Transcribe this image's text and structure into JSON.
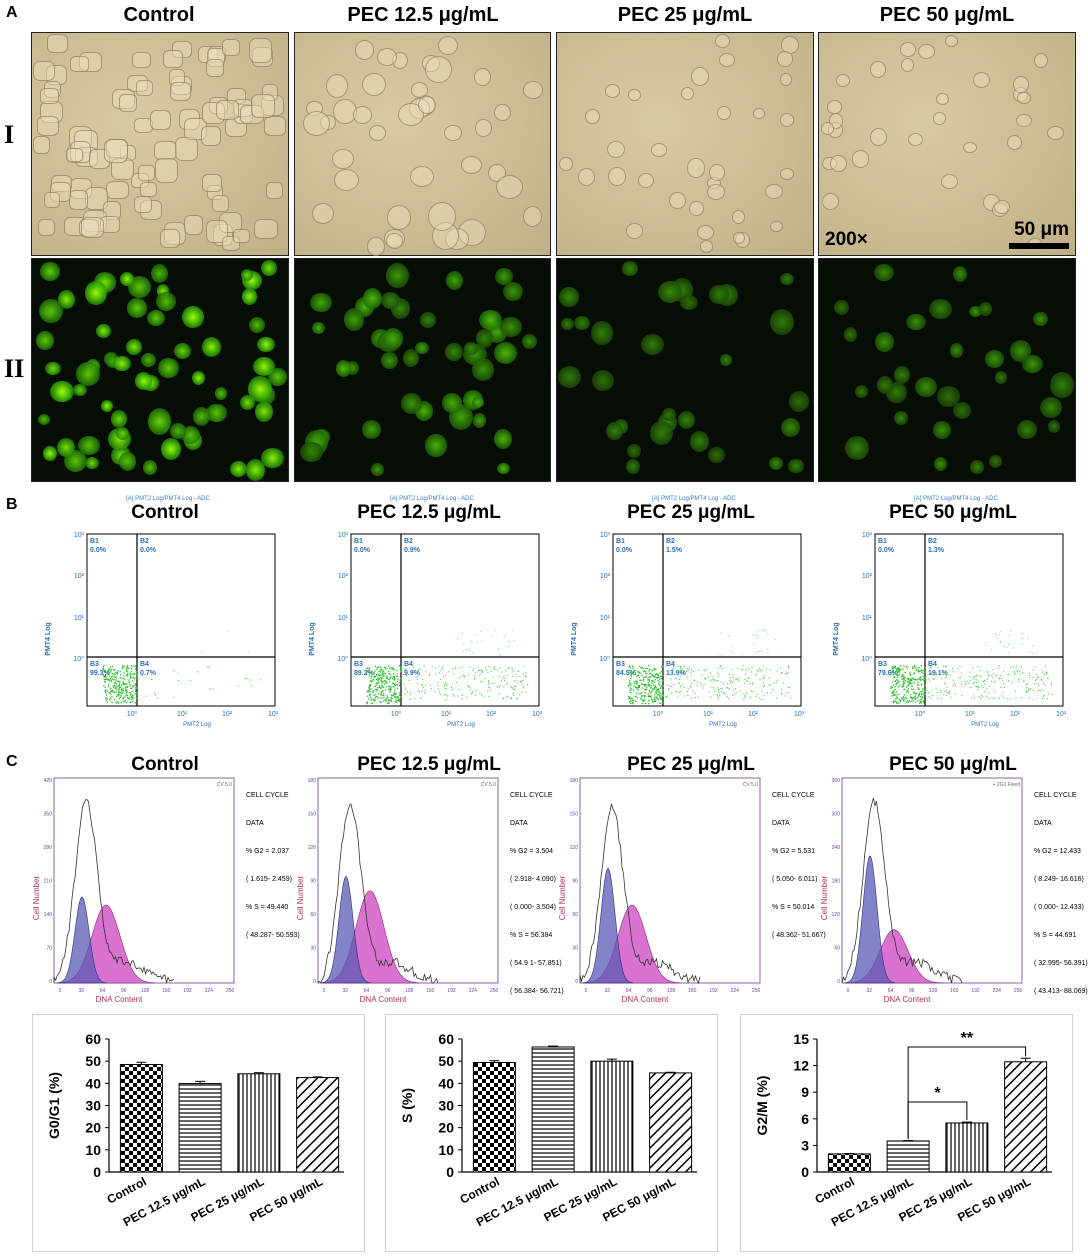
{
  "panel_letters": {
    "a": "A",
    "b": "B",
    "c": "C"
  },
  "row_labels": {
    "row1": "I",
    "row2": "II"
  },
  "column_titles": [
    "Control",
    "PEC 12.5 μg/mL",
    "PEC 25 μg/mL",
    "PEC 50 μg/mL"
  ],
  "micrograph": {
    "magnification": "200×",
    "scale_bar": "50 μm"
  },
  "flow": {
    "header": "[A] PMT2 Log/PMT4 Log - ADC",
    "y_label": "PMT4 Log",
    "x_label": "PMT2 Log",
    "y_ticks": [
      "10³",
      "10²",
      "10¹",
      "10⁰"
    ],
    "x_ticks": [
      "10⁰",
      "10¹",
      "10²",
      "10³"
    ],
    "quadrant_names": [
      "B1",
      "B2",
      "B3",
      "B4"
    ],
    "plots": [
      {
        "b1": "0.0%",
        "b2": "0.0%",
        "b3": "99.3%",
        "b4": "0.7%"
      },
      {
        "b1": "0.0%",
        "b2": "0.9%",
        "b3": "89.2%",
        "b4": "9.9%"
      },
      {
        "b1": "0.0%",
        "b2": "1.5%",
        "b3": "84.5%",
        "b4": "13.9%"
      },
      {
        "b1": "0.0%",
        "b2": "1.3%",
        "b3": "79.6%",
        "b4": "19.1%"
      }
    ]
  },
  "cell_cycle": {
    "y_label": "Cell Number",
    "x_label": "DNA Content",
    "x_ticks": [
      "0",
      "32",
      "64",
      "96",
      "128",
      "160",
      "192",
      "224",
      "256"
    ],
    "plots": [
      {
        "ymax": "420",
        "yticks": [
          "420",
          "350",
          "280",
          "210",
          "140",
          "70",
          "0"
        ],
        "corner": "CV 5.0",
        "side": [
          "CELL CYCLE",
          "DATA",
          "% G2 = 2.037",
          "( 1.615- 2.459)",
          "% S = 49.440",
          "( 48.287- 50.593)"
        ]
      },
      {
        "ymax": "180",
        "yticks": [
          "180",
          "150",
          "120",
          "90",
          "60",
          "30",
          "0"
        ],
        "corner": "CV 5.0",
        "side": [
          "CELL CYCLE",
          "DATA",
          "% G2 = 3.504",
          "( 2.918- 4.090)",
          "( 0.000- 3.504)",
          "% S = 56.384",
          "( 54.9 1- 57.851)",
          "( 56.384- 56.721)"
        ]
      },
      {
        "ymax": "180",
        "yticks": [
          "180",
          "150",
          "120",
          "90",
          "60",
          "30",
          "0"
        ],
        "corner": "CV 5.0",
        "side": [
          "CELL CYCLE",
          "DATA",
          "% G2 = 5.531",
          "( 5.050- 6.011)",
          "% S = 50.014",
          "( 48.362- 51.667)"
        ]
      },
      {
        "ymax": "360",
        "yticks": [
          "360",
          "300",
          "240",
          "180",
          "120",
          "60",
          "0"
        ],
        "corner": "+ 2G1 Fixed",
        "side": [
          "CELL CYCLE",
          "DATA",
          "% G2 = 12.433",
          "( 8.249- 16.616)",
          "( 0.000- 12.433)",
          "% S = 44.691",
          "( 32.995- 56.391)",
          "( 43.413- 88.069)"
        ]
      }
    ]
  },
  "chart_data": [
    {
      "type": "bar",
      "categories": [
        "Control",
        "PEC 12.5 μg/mL",
        "PEC 25 μg/mL",
        "PEC 50 μg/mL"
      ],
      "values": [
        48.5,
        39.9,
        44.3,
        42.6
      ],
      "errors": [
        1.0,
        1.0,
        0.5,
        0.3
      ],
      "ylabel": "G0/G1 (%)",
      "ylim": [
        0,
        60
      ],
      "yticks": [
        "0",
        "10",
        "20",
        "30",
        "40",
        "50",
        "60"
      ],
      "patterns": [
        "checker",
        "horizontal",
        "vertical",
        "diagonal"
      ]
    },
    {
      "type": "bar",
      "categories": [
        "Control",
        "PEC 12.5 μg/mL",
        "PEC 25 μg/mL",
        "PEC 50 μg/mL"
      ],
      "values": [
        49.4,
        56.4,
        50.0,
        44.7
      ],
      "errors": [
        0.8,
        0.4,
        0.9,
        0.3
      ],
      "ylabel": "S (%)",
      "ylim": [
        0,
        60
      ],
      "yticks": [
        "0",
        "10",
        "20",
        "30",
        "40",
        "50",
        "60"
      ],
      "patterns": [
        "checker",
        "horizontal",
        "vertical",
        "diagonal"
      ]
    },
    {
      "type": "bar",
      "categories": [
        "Control",
        "PEC 12.5 μg/mL",
        "PEC 25 μg/mL",
        "PEC 50 μg/mL"
      ],
      "values": [
        2.04,
        3.5,
        5.53,
        12.43
      ],
      "errors": [
        0.05,
        0.05,
        0.1,
        0.4
      ],
      "ylabel": "G2/M (%)",
      "ylim": [
        0,
        15
      ],
      "yticks": [
        "0",
        "3",
        "6",
        "9",
        "12",
        "15"
      ],
      "patterns": [
        "checker",
        "horizontal",
        "vertical",
        "diagonal"
      ],
      "annotations": [
        {
          "from": "PEC 12.5 μg/mL",
          "to": "PEC 25 μg/mL",
          "label": "*"
        },
        {
          "from": "PEC 12.5 μg/mL",
          "to": "PEC 50 μg/mL",
          "label": "**"
        }
      ]
    }
  ]
}
